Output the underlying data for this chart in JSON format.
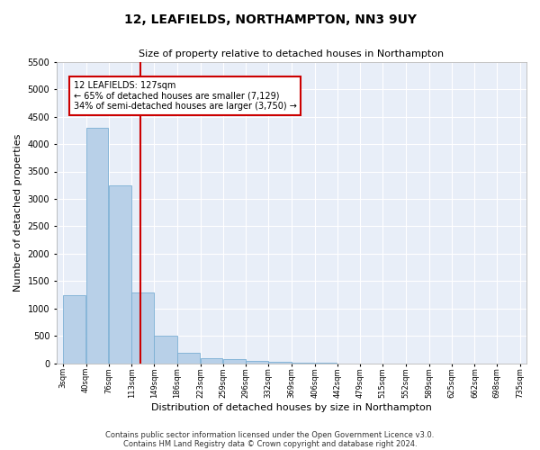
{
  "title": "12, LEAFIELDS, NORTHAMPTON, NN3 9UY",
  "subtitle": "Size of property relative to detached houses in Northampton",
  "xlabel": "Distribution of detached houses by size in Northampton",
  "ylabel": "Number of detached properties",
  "bar_color": "#b8d0e8",
  "bar_edge_color": "#7bafd4",
  "background_color": "#e8eef8",
  "grid_color": "#ffffff",
  "annotation_box_color": "#cc0000",
  "vline_color": "#cc0000",
  "annotation_line1": "12 LEAFIELDS: 127sqm",
  "annotation_line2": "← 65% of detached houses are smaller (7,129)",
  "annotation_line3": "34% of semi-detached houses are larger (3,750) →",
  "property_size": 127,
  "bin_edges": [
    3,
    40,
    76,
    113,
    149,
    186,
    223,
    259,
    296,
    332,
    369,
    406,
    442,
    479,
    515,
    552,
    589,
    625,
    662,
    698,
    735
  ],
  "bin_labels": [
    "3sqm",
    "40sqm",
    "76sqm",
    "113sqm",
    "149sqm",
    "186sqm",
    "223sqm",
    "259sqm",
    "296sqm",
    "332sqm",
    "369sqm",
    "406sqm",
    "442sqm",
    "479sqm",
    "515sqm",
    "552sqm",
    "589sqm",
    "625sqm",
    "662sqm",
    "698sqm",
    "735sqm"
  ],
  "counts": [
    1250,
    4300,
    3250,
    1300,
    500,
    200,
    100,
    75,
    50,
    30,
    20,
    10,
    5,
    3,
    2,
    1,
    1,
    0,
    0,
    0
  ],
  "ylim": [
    0,
    5500
  ],
  "yticks": [
    0,
    500,
    1000,
    1500,
    2000,
    2500,
    3000,
    3500,
    4000,
    4500,
    5000,
    5500
  ],
  "footer_line1": "Contains HM Land Registry data © Crown copyright and database right 2024.",
  "footer_line2": "Contains public sector information licensed under the Open Government Licence v3.0.",
  "fig_width": 6.0,
  "fig_height": 5.0,
  "dpi": 100
}
